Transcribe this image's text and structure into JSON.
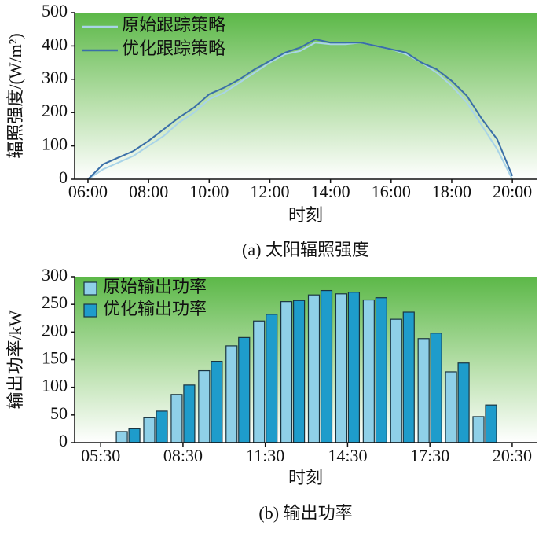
{
  "chart_data": [
    {
      "type": "line",
      "caption": "(a) 太阳辐照强度",
      "xlabel": "时刻",
      "ylabel": "辐照强度/(W/m²)",
      "x": [
        6,
        6.5,
        7,
        7.5,
        8,
        8.5,
        9,
        9.5,
        10,
        10.5,
        11,
        11.5,
        12,
        12.5,
        13,
        13.5,
        14,
        14.5,
        15,
        15.5,
        16,
        16.5,
        17,
        17.5,
        18,
        18.5,
        19,
        19.5,
        20
      ],
      "series": [
        {
          "name": "原始跟踪策略",
          "color": "#a9d4e8",
          "values": [
            0,
            30,
            50,
            70,
            100,
            130,
            170,
            200,
            240,
            260,
            290,
            320,
            350,
            375,
            385,
            410,
            405,
            405,
            410,
            400,
            390,
            375,
            350,
            320,
            280,
            230,
            160,
            90,
            0
          ]
        },
        {
          "name": "优化跟踪策略",
          "color": "#3a6fa8",
          "values": [
            0,
            45,
            65,
            85,
            115,
            150,
            185,
            215,
            255,
            275,
            300,
            330,
            355,
            380,
            395,
            420,
            410,
            410,
            410,
            400,
            390,
            380,
            350,
            330,
            295,
            250,
            180,
            120,
            10
          ]
        }
      ],
      "xlim": [
        5.56,
        20.8
      ],
      "xticks": [
        {
          "value": 6,
          "label": "06:00"
        },
        {
          "value": 8,
          "label": "08:00"
        },
        {
          "value": 10,
          "label": "10:00"
        },
        {
          "value": 12,
          "label": "12:00"
        },
        {
          "value": 14,
          "label": "14:00"
        },
        {
          "value": 16,
          "label": "16:00"
        },
        {
          "value": 18,
          "label": "18:00"
        },
        {
          "value": 20,
          "label": "20:00"
        }
      ],
      "ylim": [
        0,
        500
      ],
      "yticks": [
        0,
        100,
        200,
        300,
        400,
        500
      ],
      "legend": "upper left"
    },
    {
      "type": "bar",
      "caption": "(b) 输出功率",
      "xlabel": "时刻",
      "ylabel": "输出功率/kW",
      "x": [
        6.5,
        7.5,
        8.5,
        9.5,
        10.5,
        11.5,
        12.5,
        13.5,
        14.5,
        15.5,
        16.5,
        17.5,
        18.5,
        19.5
      ],
      "series": [
        {
          "name": "原始输出功率",
          "color": "#8fd0e8",
          "values": [
            20,
            45,
            87,
            130,
            175,
            220,
            255,
            267,
            269,
            258,
            223,
            188,
            128,
            47
          ]
        },
        {
          "name": "优化输出功率",
          "color": "#1e9ccb",
          "values": [
            25,
            57,
            104,
            147,
            190,
            232,
            257,
            275,
            272,
            262,
            236,
            198,
            144,
            68
          ]
        }
      ],
      "xlim": [
        4.55,
        21.39
      ],
      "xticks": [
        {
          "value": 5.5,
          "label": "05:30"
        },
        {
          "value": 8.5,
          "label": "08:30"
        },
        {
          "value": 11.5,
          "label": "11:30"
        },
        {
          "value": 14.5,
          "label": "14:30"
        },
        {
          "value": 17.5,
          "label": "17:30"
        },
        {
          "value": 20.5,
          "label": "20:30"
        }
      ],
      "ylim": [
        0,
        300
      ],
      "yticks": [
        0,
        50,
        100,
        150,
        200,
        250,
        300
      ],
      "legend": "upper left"
    }
  ]
}
